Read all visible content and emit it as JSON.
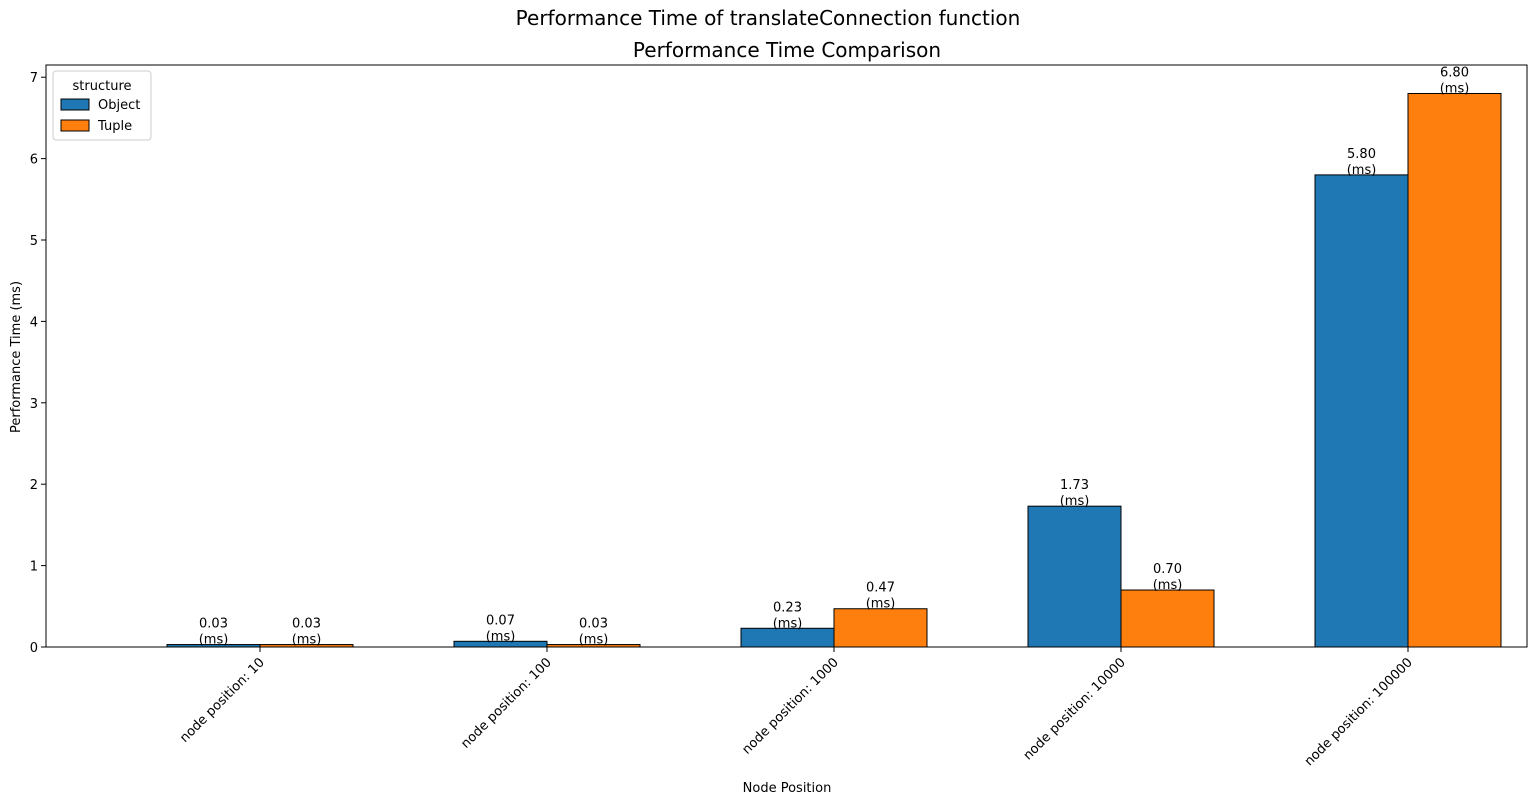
{
  "figure": {
    "suptitle": "Performance Time of translateConnection function"
  },
  "chart_data": {
    "type": "bar",
    "title": "Performance Time Comparison",
    "xlabel": "Node Position",
    "ylabel": "Performance Time (ms)",
    "categories": [
      "node position: 10",
      "node position: 100",
      "node position: 1000",
      "node position: 10000",
      "node position: 100000"
    ],
    "series": [
      {
        "name": "Object",
        "color": "#1f77b4",
        "values": [
          0.03,
          0.07,
          0.23,
          1.73,
          5.8
        ],
        "labels": [
          "0.03\n(ms)",
          "0.07\n(ms)",
          "0.23\n(ms)",
          "1.73\n(ms)",
          "5.80\n(ms)"
        ]
      },
      {
        "name": "Tuple",
        "color": "#ff7f0e",
        "values": [
          0.03,
          0.03,
          0.47,
          0.7,
          6.8
        ],
        "labels": [
          "0.03\n(ms)",
          "0.03\n(ms)",
          "0.47\n(ms)",
          "0.70\n(ms)",
          "6.80\n(ms)"
        ]
      }
    ],
    "ylim": [
      0,
      7.15
    ],
    "yticks": [
      0,
      1,
      2,
      3,
      4,
      5,
      6,
      7
    ],
    "ytick_labels": [
      "0",
      "1",
      "2",
      "3",
      "4",
      "5",
      "6",
      "7"
    ],
    "grid": false,
    "legend": {
      "title": "structure",
      "placement": "top-left"
    },
    "bar_edge_color": "#000000"
  }
}
